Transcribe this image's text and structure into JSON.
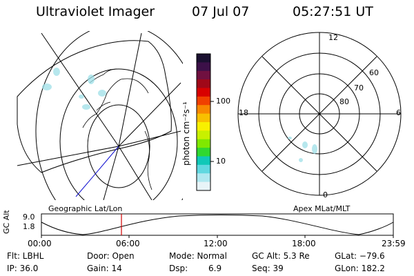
{
  "header": {
    "instrument": "Ultraviolet Imager",
    "date": "07 Jul 07",
    "time": "05:27:51 UT"
  },
  "colorbar": {
    "label": "photon cm⁻²s⁻¹",
    "ticks": [
      "100",
      "10"
    ],
    "colors": [
      "#1a1030",
      "#3c1048",
      "#701040",
      "#a00818",
      "#d80000",
      "#f04000",
      "#f88800",
      "#f8c000",
      "#f8f000",
      "#c8f000",
      "#80e800",
      "#30d830",
      "#10c8b8",
      "#60d8e0",
      "#b0e8f0",
      "#e8f4f8"
    ]
  },
  "left_panel": {
    "label": "Geographic Lat/Lon"
  },
  "right_panel": {
    "label": "Apex MLat/MLT",
    "mlt_labels": [
      "12",
      "18",
      "6",
      "0"
    ],
    "lat_labels": [
      "60",
      "70",
      "80"
    ]
  },
  "altitude_plot": {
    "ylabel": "GC Alt",
    "yticks": [
      "9.0",
      "1.8"
    ],
    "xticks": [
      "00:00",
      "06:00",
      "12:00",
      "18:00",
      "23:59"
    ],
    "marker_time": "05:27:51"
  },
  "info": {
    "flt": "Flt: LBHL",
    "door": "Door: Open",
    "mode": "Mode: Normal",
    "gc_alt": "GC Alt: 5.3 Re",
    "glat": "GLat: −79.6",
    "ip": "IP: 36.0",
    "gain": "Gain: 14",
    "dsp_label": "Dsp:",
    "dsp_value": "6.9",
    "seq": "Seq: 39",
    "glon": "GLon: 182.2"
  }
}
